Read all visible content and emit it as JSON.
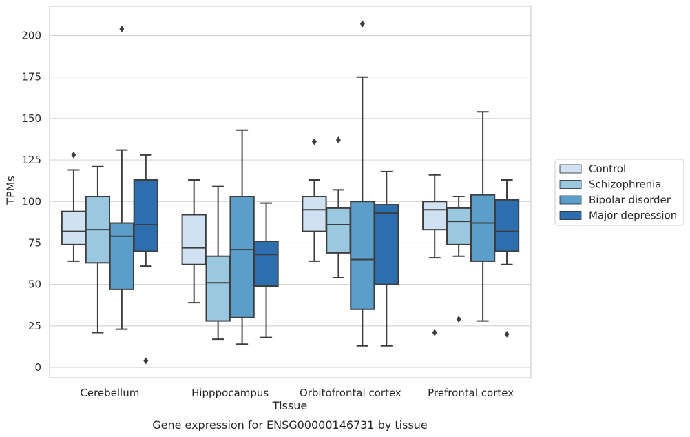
{
  "chart_data": {
    "type": "box",
    "xlabel": "Tissue",
    "ylabel": "TPMs",
    "caption": "Gene expression for ENSG00000146731 by tissue",
    "ylim": [
      -5,
      218
    ],
    "yticks": [
      0,
      25,
      50,
      75,
      100,
      125,
      150,
      175,
      200
    ],
    "grid": true,
    "legend_position": "right",
    "categories": [
      "Cerebellum",
      "Hipppocampus",
      "Orbitofrontal cortex",
      "Prefrontal cortex"
    ],
    "series": [
      {
        "name": "Control",
        "color": "#d0e2f2",
        "boxes": [
          {
            "min": 64,
            "q1": 74,
            "median": 82,
            "q3": 94,
            "max": 119,
            "outliers": [
              128
            ]
          },
          {
            "min": 39,
            "q1": 62,
            "median": 72,
            "q3": 92,
            "max": 113,
            "outliers": []
          },
          {
            "min": 64,
            "q1": 82,
            "median": 95,
            "q3": 103,
            "max": 113,
            "outliers": [
              136
            ]
          },
          {
            "min": 66,
            "q1": 83,
            "median": 95,
            "q3": 100,
            "max": 116,
            "outliers": [
              21
            ]
          }
        ]
      },
      {
        "name": "Schizophrenia",
        "color": "#9ac8e0",
        "boxes": [
          {
            "min": 21,
            "q1": 63,
            "median": 83,
            "q3": 103,
            "max": 121,
            "outliers": []
          },
          {
            "min": 17,
            "q1": 28,
            "median": 51,
            "q3": 67,
            "max": 109,
            "outliers": []
          },
          {
            "min": 54,
            "q1": 69,
            "median": 86,
            "q3": 96,
            "max": 107,
            "outliers": [
              137
            ]
          },
          {
            "min": 67,
            "q1": 74,
            "median": 88,
            "q3": 96,
            "max": 103,
            "outliers": [
              29
            ]
          }
        ]
      },
      {
        "name": "Bipolar disorder",
        "color": "#5a9ec9",
        "boxes": [
          {
            "min": 23,
            "q1": 47,
            "median": 79,
            "q3": 87,
            "max": 131,
            "outliers": [
              204
            ]
          },
          {
            "min": 14,
            "q1": 30,
            "median": 71,
            "q3": 103,
            "max": 143,
            "outliers": []
          },
          {
            "min": 13,
            "q1": 35,
            "median": 65,
            "q3": 100,
            "max": 175,
            "outliers": [
              207
            ]
          },
          {
            "min": 28,
            "q1": 64,
            "median": 87,
            "q3": 104,
            "max": 154,
            "outliers": []
          }
        ]
      },
      {
        "name": "Major depression",
        "color": "#2d6fae",
        "boxes": [
          {
            "min": 61,
            "q1": 70,
            "median": 86,
            "q3": 113,
            "max": 128,
            "outliers": [
              4
            ]
          },
          {
            "min": 18,
            "q1": 49,
            "median": 68,
            "q3": 76,
            "max": 99,
            "outliers": []
          },
          {
            "min": 13,
            "q1": 50,
            "median": 93,
            "q3": 98,
            "max": 118,
            "outliers": []
          },
          {
            "min": 62,
            "q1": 70,
            "median": 82,
            "q3": 101,
            "max": 113,
            "outliers": [
              20
            ]
          }
        ]
      }
    ]
  }
}
